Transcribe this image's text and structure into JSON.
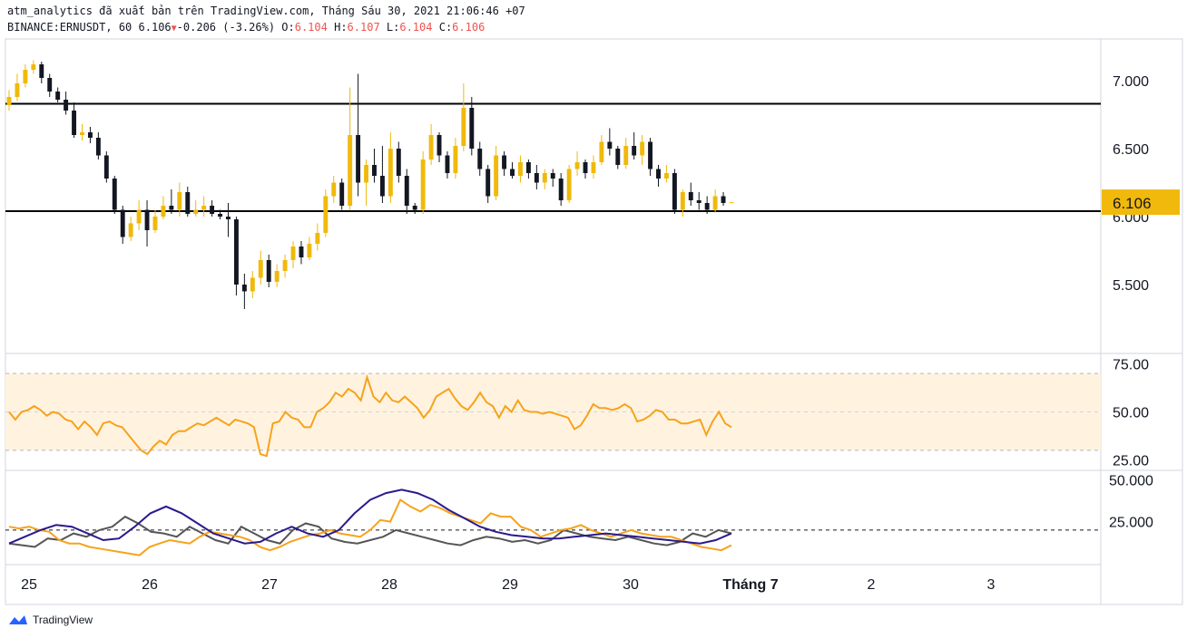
{
  "header": {
    "line1": "atm_analytics đã xuất bản trên TradingView.com, Tháng Sáu 30, 2021 21:06:46 +07",
    "symbol": "BINANCE:ERNUSDT, 60",
    "last": "6.106",
    "change": "-0.206 (-3.26%)",
    "o_label": "O:",
    "o": "6.104",
    "h_label": "H:",
    "h": "6.107",
    "l_label": "L:",
    "l": "6.104",
    "c_label": "C:",
    "c": "6.106"
  },
  "brand": "TradingView",
  "colors": {
    "bull": "#f0b90b",
    "bear": "#131722",
    "rsi": "#f7a21b",
    "rsi_band": "#fff3e0",
    "stoch_k": "#f7a21b",
    "stoch_d": "#2a1a8c",
    "osc": "#555555",
    "price_tag": "#f0b90b"
  },
  "chart_data": {
    "type": "candlestick",
    "price_axis": {
      "ticks": [
        "7.000",
        "6.500",
        "6.000",
        "5.500"
      ],
      "range": [
        5.0,
        7.3
      ]
    },
    "last_price_label": "6.106",
    "horizontal_levels": [
      6.83,
      6.04
    ],
    "x_labels": [
      "25",
      "26",
      "27",
      "28",
      "29",
      "30",
      "Tháng 7",
      "2",
      "3"
    ],
    "candles_ohlc": [
      [
        6.82,
        6.93,
        6.78,
        6.88
      ],
      [
        6.88,
        7.05,
        6.85,
        6.98
      ],
      [
        6.98,
        7.12,
        6.95,
        7.08
      ],
      [
        7.08,
        7.15,
        7.05,
        7.12
      ],
      [
        7.12,
        7.14,
        6.98,
        7.02
      ],
      [
        7.02,
        7.05,
        6.88,
        6.92
      ],
      [
        6.92,
        6.95,
        6.84,
        6.86
      ],
      [
        6.86,
        6.92,
        6.75,
        6.78
      ],
      [
        6.78,
        6.84,
        6.58,
        6.6
      ],
      [
        6.6,
        6.68,
        6.56,
        6.62
      ],
      [
        6.62,
        6.66,
        6.54,
        6.58
      ],
      [
        6.58,
        6.62,
        6.42,
        6.45
      ],
      [
        6.45,
        6.48,
        6.25,
        6.28
      ],
      [
        6.28,
        6.3,
        6.02,
        6.05
      ],
      [
        6.05,
        6.08,
        5.8,
        5.85
      ],
      [
        5.85,
        6.0,
        5.82,
        5.95
      ],
      [
        5.95,
        6.12,
        5.9,
        6.05
      ],
      [
        6.05,
        6.12,
        5.78,
        5.9
      ],
      [
        5.9,
        6.05,
        5.88,
        6.0
      ],
      [
        6.0,
        6.15,
        5.98,
        6.08
      ],
      [
        6.08,
        6.2,
        6.02,
        6.05
      ],
      [
        6.05,
        6.25,
        6.0,
        6.18
      ],
      [
        6.18,
        6.22,
        6.0,
        6.02
      ],
      [
        6.02,
        6.12,
        6.0,
        6.05
      ],
      [
        6.05,
        6.15,
        6.0,
        6.08
      ],
      [
        6.08,
        6.12,
        6.0,
        6.02
      ],
      [
        6.02,
        6.05,
        5.98,
        6.0
      ],
      [
        6.0,
        6.1,
        5.85,
        5.98
      ],
      [
        5.98,
        6.0,
        5.42,
        5.5
      ],
      [
        5.5,
        5.58,
        5.32,
        5.45
      ],
      [
        5.45,
        5.6,
        5.4,
        5.55
      ],
      [
        5.55,
        5.75,
        5.5,
        5.68
      ],
      [
        5.68,
        5.72,
        5.48,
        5.52
      ],
      [
        5.52,
        5.65,
        5.48,
        5.6
      ],
      [
        5.6,
        5.72,
        5.55,
        5.68
      ],
      [
        5.68,
        5.82,
        5.62,
        5.78
      ],
      [
        5.78,
        5.82,
        5.65,
        5.7
      ],
      [
        5.7,
        5.85,
        5.68,
        5.8
      ],
      [
        5.8,
        5.95,
        5.75,
        5.88
      ],
      [
        5.88,
        6.2,
        5.85,
        6.15
      ],
      [
        6.15,
        6.3,
        6.1,
        6.25
      ],
      [
        6.25,
        6.28,
        6.05,
        6.08
      ],
      [
        6.08,
        6.95,
        6.05,
        6.6
      ],
      [
        6.6,
        7.05,
        6.15,
        6.25
      ],
      [
        6.25,
        6.42,
        6.08,
        6.38
      ],
      [
        6.38,
        6.5,
        6.25,
        6.3
      ],
      [
        6.3,
        6.52,
        6.1,
        6.15
      ],
      [
        6.15,
        6.62,
        6.1,
        6.5
      ],
      [
        6.5,
        6.55,
        6.25,
        6.3
      ],
      [
        6.3,
        6.35,
        6.02,
        6.08
      ],
      [
        6.08,
        6.1,
        6.02,
        6.05
      ],
      [
        6.05,
        6.48,
        6.02,
        6.42
      ],
      [
        6.42,
        6.68,
        6.38,
        6.6
      ],
      [
        6.6,
        6.62,
        6.4,
        6.45
      ],
      [
        6.45,
        6.48,
        6.28,
        6.32
      ],
      [
        6.32,
        6.58,
        6.28,
        6.52
      ],
      [
        6.52,
        6.98,
        6.48,
        6.8
      ],
      [
        6.8,
        6.88,
        6.45,
        6.5
      ],
      [
        6.5,
        6.55,
        6.3,
        6.35
      ],
      [
        6.35,
        6.38,
        6.1,
        6.15
      ],
      [
        6.15,
        6.52,
        6.12,
        6.45
      ],
      [
        6.45,
        6.48,
        6.3,
        6.35
      ],
      [
        6.35,
        6.4,
        6.28,
        6.3
      ],
      [
        6.3,
        6.45,
        6.25,
        6.4
      ],
      [
        6.4,
        6.42,
        6.28,
        6.32
      ],
      [
        6.32,
        6.38,
        6.2,
        6.25
      ],
      [
        6.25,
        6.35,
        6.2,
        6.32
      ],
      [
        6.32,
        6.35,
        6.22,
        6.28
      ],
      [
        6.28,
        6.32,
        6.08,
        6.12
      ],
      [
        6.12,
        6.38,
        6.1,
        6.35
      ],
      [
        6.35,
        6.48,
        6.3,
        6.4
      ],
      [
        6.4,
        6.42,
        6.28,
        6.32
      ],
      [
        6.32,
        6.45,
        6.28,
        6.4
      ],
      [
        6.4,
        6.6,
        6.38,
        6.55
      ],
      [
        6.55,
        6.65,
        6.45,
        6.5
      ],
      [
        6.5,
        6.52,
        6.35,
        6.38
      ],
      [
        6.38,
        6.58,
        6.35,
        6.52
      ],
      [
        6.52,
        6.62,
        6.42,
        6.45
      ],
      [
        6.45,
        6.6,
        6.38,
        6.55
      ],
      [
        6.55,
        6.58,
        6.3,
        6.35
      ],
      [
        6.35,
        6.38,
        6.22,
        6.28
      ],
      [
        6.28,
        6.38,
        6.25,
        6.32
      ],
      [
        6.32,
        6.35,
        6.02,
        6.05
      ],
      [
        6.05,
        6.2,
        6.0,
        6.18
      ],
      [
        6.18,
        6.25,
        6.08,
        6.12
      ],
      [
        6.12,
        6.18,
        6.05,
        6.1
      ],
      [
        6.1,
        6.15,
        6.02,
        6.05
      ],
      [
        6.05,
        6.2,
        6.03,
        6.15
      ],
      [
        6.15,
        6.18,
        6.08,
        6.1
      ],
      [
        6.104,
        6.107,
        6.104,
        6.106
      ]
    ],
    "rsi": {
      "axis_ticks": [
        "75.00",
        "50.00",
        "25.00"
      ],
      "band": [
        70,
        30
      ],
      "range": [
        20,
        80
      ],
      "values": [
        50,
        46,
        50,
        51,
        53,
        51,
        48,
        50,
        49,
        46,
        45,
        41,
        45,
        42,
        38,
        44,
        45,
        43,
        42,
        38,
        34,
        30,
        28,
        32,
        35,
        33,
        38,
        40,
        40,
        42,
        44,
        43,
        45,
        47,
        45,
        43,
        46,
        45,
        44,
        42,
        28,
        27,
        44,
        45,
        50,
        47,
        46,
        42,
        42,
        50,
        52,
        55,
        60,
        58,
        62,
        60,
        56,
        68,
        58,
        55,
        60,
        56,
        55,
        58,
        55,
        52,
        47,
        51,
        58,
        60,
        62,
        57,
        53,
        51,
        55,
        60,
        55,
        53,
        47,
        53,
        50,
        56,
        51,
        50,
        50,
        49,
        50,
        49,
        48,
        47,
        41,
        43,
        48,
        54,
        52,
        52,
        51,
        52,
        54,
        52,
        45,
        46,
        48,
        51,
        50,
        46,
        46,
        44,
        44,
        45,
        46,
        38,
        45,
        50,
        44,
        42
      ]
    },
    "stoch": {
      "axis_ticks": [
        "50.000",
        "25.000"
      ],
      "range": [
        0,
        55
      ],
      "reference_line": 20,
      "k_values": [
        22,
        21,
        22,
        20,
        19,
        14,
        12,
        12,
        10,
        9,
        8,
        7,
        6,
        5,
        10,
        12,
        14,
        13,
        12,
        16,
        19,
        18,
        17,
        16,
        14,
        10,
        8,
        10,
        13,
        15,
        17,
        18,
        20,
        18,
        17,
        16,
        20,
        26,
        25,
        38,
        34,
        31,
        35,
        33,
        30,
        28,
        26,
        24,
        30,
        28,
        28,
        22,
        20,
        16,
        18,
        20,
        21,
        23,
        20,
        18,
        16,
        18,
        20,
        18,
        17,
        16,
        16,
        14,
        12,
        10,
        9,
        8,
        11
      ],
      "d_values": [
        12,
        16,
        20,
        23,
        22,
        18,
        14,
        15,
        22,
        30,
        34,
        30,
        24,
        18,
        15,
        12,
        13,
        18,
        22,
        18,
        16,
        20,
        30,
        38,
        42,
        44,
        42,
        38,
        32,
        27,
        22,
        19,
        17,
        16,
        15,
        15,
        16,
        17,
        18,
        17,
        16,
        15,
        14,
        13,
        12,
        14,
        18
      ],
      "osc_values": [
        12,
        11,
        10,
        15,
        14,
        18,
        16,
        20,
        22,
        28,
        24,
        19,
        18,
        16,
        22,
        18,
        14,
        12,
        22,
        18,
        14,
        12,
        20,
        24,
        22,
        15,
        13,
        12,
        14,
        16,
        20,
        18,
        16,
        14,
        12,
        11,
        14,
        16,
        15,
        13,
        14,
        12,
        14,
        20,
        18,
        16,
        15,
        14,
        16,
        14,
        12,
        11,
        13,
        18,
        16,
        20,
        18
      ]
    }
  }
}
